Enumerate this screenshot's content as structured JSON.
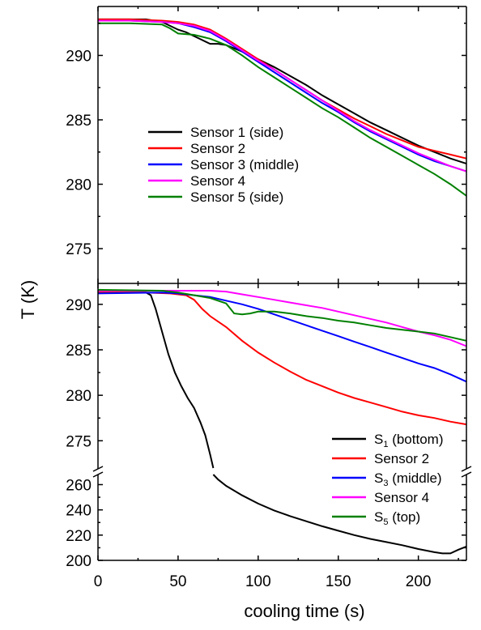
{
  "chart_data": [
    {
      "type": "line",
      "panel": "top",
      "xlabel": "",
      "ylabel": "",
      "xlim": [
        0,
        230
      ],
      "ylim": [
        272.3,
        293.8
      ],
      "yticks": [
        275,
        280,
        285,
        290
      ],
      "legend": {
        "placement": "center-left"
      },
      "series": [
        {
          "name": "Sensor 1 (side)",
          "color": "#000000",
          "points": [
            [
              0,
              292.8
            ],
            [
              10,
              292.8
            ],
            [
              20,
              292.8
            ],
            [
              30,
              292.8
            ],
            [
              35,
              292.7
            ],
            [
              40,
              292.6
            ],
            [
              45,
              292.3
            ],
            [
              50,
              292.0
            ],
            [
              55,
              291.8
            ],
            [
              60,
              291.5
            ],
            [
              65,
              291.2
            ],
            [
              70,
              290.9
            ],
            [
              75,
              290.9
            ],
            [
              80,
              290.8
            ],
            [
              90,
              290.3
            ],
            [
              100,
              289.7
            ],
            [
              110,
              289.1
            ],
            [
              120,
              288.4
            ],
            [
              130,
              287.7
            ],
            [
              140,
              286.9
            ],
            [
              150,
              286.2
            ],
            [
              160,
              285.5
            ],
            [
              170,
              284.8
            ],
            [
              180,
              284.2
            ],
            [
              190,
              283.6
            ],
            [
              200,
              283.0
            ],
            [
              210,
              282.5
            ],
            [
              220,
              282.0
            ],
            [
              230,
              281.6
            ]
          ]
        },
        {
          "name": "Sensor 2",
          "color": "#ff0000",
          "points": [
            [
              0,
              292.8
            ],
            [
              20,
              292.8
            ],
            [
              40,
              292.7
            ],
            [
              50,
              292.6
            ],
            [
              60,
              292.4
            ],
            [
              70,
              292.0
            ],
            [
              80,
              291.3
            ],
            [
              90,
              290.5
            ],
            [
              100,
              289.7
            ],
            [
              110,
              288.9
            ],
            [
              120,
              288.1
            ],
            [
              130,
              287.3
            ],
            [
              140,
              286.5
            ],
            [
              150,
              285.8
            ],
            [
              160,
              285.1
            ],
            [
              170,
              284.5
            ],
            [
              180,
              283.9
            ],
            [
              190,
              283.4
            ],
            [
              200,
              282.9
            ],
            [
              210,
              282.6
            ],
            [
              220,
              282.3
            ],
            [
              230,
              282.0
            ]
          ]
        },
        {
          "name": "Sensor 3 (middle)",
          "color": "#0000ff",
          "points": [
            [
              0,
              292.7
            ],
            [
              20,
              292.7
            ],
            [
              40,
              292.6
            ],
            [
              50,
              292.5
            ],
            [
              60,
              292.2
            ],
            [
              70,
              291.8
            ],
            [
              80,
              291.1
            ],
            [
              90,
              290.3
            ],
            [
              100,
              289.5
            ],
            [
              110,
              288.7
            ],
            [
              120,
              287.9
            ],
            [
              130,
              287.1
            ],
            [
              140,
              286.3
            ],
            [
              150,
              285.6
            ],
            [
              160,
              284.8
            ],
            [
              170,
              284.1
            ],
            [
              180,
              283.5
            ],
            [
              190,
              282.9
            ],
            [
              200,
              282.3
            ],
            [
              210,
              281.8
            ],
            [
              220,
              281.4
            ],
            [
              230,
              281.0
            ]
          ]
        },
        {
          "name": "Sensor 4",
          "color": "#ff00ff",
          "points": [
            [
              0,
              292.7
            ],
            [
              20,
              292.7
            ],
            [
              40,
              292.6
            ],
            [
              50,
              292.5
            ],
            [
              60,
              292.3
            ],
            [
              70,
              291.9
            ],
            [
              80,
              291.2
            ],
            [
              90,
              290.4
            ],
            [
              100,
              289.6
            ],
            [
              110,
              288.9
            ],
            [
              120,
              288.1
            ],
            [
              130,
              287.3
            ],
            [
              140,
              286.5
            ],
            [
              150,
              285.7
            ],
            [
              160,
              284.9
            ],
            [
              170,
              284.2
            ],
            [
              180,
              283.6
            ],
            [
              190,
              283.0
            ],
            [
              200,
              282.4
            ],
            [
              210,
              281.9
            ],
            [
              220,
              281.4
            ],
            [
              230,
              281.0
            ]
          ]
        },
        {
          "name": "Sensor 5 (side)",
          "color": "#008000",
          "points": [
            [
              0,
              292.5
            ],
            [
              20,
              292.5
            ],
            [
              40,
              292.4
            ],
            [
              45,
              292.1
            ],
            [
              50,
              291.7
            ],
            [
              60,
              291.6
            ],
            [
              70,
              291.3
            ],
            [
              80,
              290.8
            ],
            [
              90,
              290.0
            ],
            [
              100,
              289.1
            ],
            [
              110,
              288.3
            ],
            [
              120,
              287.5
            ],
            [
              130,
              286.7
            ],
            [
              140,
              285.9
            ],
            [
              150,
              285.2
            ],
            [
              160,
              284.4
            ],
            [
              170,
              283.6
            ],
            [
              180,
              282.9
            ],
            [
              190,
              282.2
            ],
            [
              200,
              281.5
            ],
            [
              210,
              280.8
            ],
            [
              220,
              280.0
            ],
            [
              230,
              279.1
            ]
          ]
        }
      ]
    },
    {
      "type": "line",
      "panel": "bottom",
      "xlabel": "cooling time (s)",
      "ylabel": "T (K)",
      "xlim": [
        0,
        230
      ],
      "ylim_upper": [
        272,
        292.3
      ],
      "ylim_lower": [
        200,
        268
      ],
      "yticks_upper": [
        275,
        280,
        285,
        290
      ],
      "yticks_lower": [
        200,
        220,
        240,
        260
      ],
      "xticks": [
        0,
        50,
        100,
        150,
        200
      ],
      "broken_axis": true,
      "legend": {
        "placement": "bottom-right"
      },
      "series": [
        {
          "name": "S1 (bottom)",
          "color": "#000000",
          "upper": [
            [
              0,
              291.3
            ],
            [
              20,
              291.3
            ],
            [
              30,
              291.3
            ],
            [
              33,
              291.0
            ],
            [
              36,
              289.5
            ],
            [
              40,
              287.0
            ],
            [
              44,
              284.5
            ],
            [
              48,
              282.5
            ],
            [
              52,
              281.0
            ],
            [
              56,
              279.7
            ],
            [
              60,
              278.6
            ],
            [
              64,
              277.0
            ],
            [
              67,
              275.6
            ],
            [
              70,
              273.5
            ],
            [
              72,
              272
            ]
          ],
          "lower": [
            [
              72,
              268
            ],
            [
              75,
              264
            ],
            [
              80,
              259
            ],
            [
              90,
              251.5
            ],
            [
              100,
              245
            ],
            [
              110,
              239.5
            ],
            [
              120,
              235
            ],
            [
              130,
              231
            ],
            [
              140,
              227
            ],
            [
              150,
              223.5
            ],
            [
              160,
              220
            ],
            [
              170,
              217
            ],
            [
              180,
              214.5
            ],
            [
              190,
              212
            ],
            [
              200,
              209
            ],
            [
              210,
              206.5
            ],
            [
              215,
              205.5
            ],
            [
              220,
              205.5
            ],
            [
              225,
              208.5
            ],
            [
              230,
              211
            ]
          ]
        },
        {
          "name": "Sensor 2",
          "color": "#ff0000",
          "upper": [
            [
              0,
              291.3
            ],
            [
              30,
              291.3
            ],
            [
              45,
              291.2
            ],
            [
              55,
              291.0
            ],
            [
              60,
              290.5
            ],
            [
              65,
              289.5
            ],
            [
              70,
              288.7
            ],
            [
              80,
              287.5
            ],
            [
              90,
              286.0
            ],
            [
              100,
              284.7
            ],
            [
              110,
              283.6
            ],
            [
              120,
              282.6
            ],
            [
              130,
              281.7
            ],
            [
              140,
              281.0
            ],
            [
              150,
              280.3
            ],
            [
              160,
              279.7
            ],
            [
              170,
              279.2
            ],
            [
              180,
              278.7
            ],
            [
              190,
              278.2
            ],
            [
              200,
              277.8
            ],
            [
              210,
              277.5
            ],
            [
              220,
              277.1
            ],
            [
              230,
              276.8
            ]
          ]
        },
        {
          "name": "S3 (middle)",
          "color": "#0000ff",
          "upper": [
            [
              0,
              291.2
            ],
            [
              40,
              291.3
            ],
            [
              50,
              291.2
            ],
            [
              60,
              291.0
            ],
            [
              70,
              290.8
            ],
            [
              80,
              290.4
            ],
            [
              90,
              290.0
            ],
            [
              100,
              289.5
            ],
            [
              110,
              288.9
            ],
            [
              120,
              288.3
            ],
            [
              130,
              287.7
            ],
            [
              140,
              287.1
            ],
            [
              150,
              286.5
            ],
            [
              160,
              285.9
            ],
            [
              170,
              285.3
            ],
            [
              180,
              284.7
            ],
            [
              190,
              284.1
            ],
            [
              200,
              283.5
            ],
            [
              210,
              283.0
            ],
            [
              220,
              282.3
            ],
            [
              230,
              281.5
            ]
          ]
        },
        {
          "name": "Sensor 4",
          "color": "#ff00ff",
          "upper": [
            [
              0,
              291.5
            ],
            [
              40,
              291.5
            ],
            [
              60,
              291.5
            ],
            [
              70,
              291.5
            ],
            [
              80,
              291.4
            ],
            [
              90,
              291.1
            ],
            [
              100,
              290.8
            ],
            [
              110,
              290.5
            ],
            [
              120,
              290.2
            ],
            [
              130,
              289.9
            ],
            [
              140,
              289.6
            ],
            [
              150,
              289.2
            ],
            [
              160,
              288.8
            ],
            [
              170,
              288.4
            ],
            [
              180,
              288.0
            ],
            [
              190,
              287.5
            ],
            [
              200,
              287.0
            ],
            [
              210,
              286.6
            ],
            [
              220,
              286.1
            ],
            [
              230,
              285.4
            ]
          ]
        },
        {
          "name": "S5 (top)",
          "color": "#008000",
          "upper": [
            [
              0,
              291.6
            ],
            [
              40,
              291.5
            ],
            [
              50,
              291.3
            ],
            [
              60,
              291.0
            ],
            [
              70,
              290.7
            ],
            [
              80,
              290.1
            ],
            [
              85,
              289.0
            ],
            [
              90,
              288.9
            ],
            [
              95,
              289.0
            ],
            [
              100,
              289.2
            ],
            [
              110,
              289.2
            ],
            [
              120,
              289.0
            ],
            [
              130,
              288.7
            ],
            [
              140,
              288.5
            ],
            [
              150,
              288.2
            ],
            [
              160,
              288.0
            ],
            [
              170,
              287.7
            ],
            [
              180,
              287.4
            ],
            [
              190,
              287.2
            ],
            [
              200,
              287.0
            ],
            [
              210,
              286.8
            ],
            [
              220,
              286.4
            ],
            [
              230,
              286.0
            ]
          ]
        }
      ]
    }
  ],
  "top_legend": [
    {
      "text": "Sensor 1 (side)",
      "color": "#000000"
    },
    {
      "text": "Sensor 2",
      "color": "#ff0000"
    },
    {
      "text": "Sensor 3 (middle)",
      "color": "#0000ff"
    },
    {
      "text": "Sensor 4",
      "color": "#ff00ff"
    },
    {
      "text": "Sensor 5 (side)",
      "color": "#008000"
    }
  ],
  "bottom_legend": [
    {
      "pre": "S",
      "sub": "1",
      "post": " (bottom)",
      "color": "#000000"
    },
    {
      "pre": "Sensor 2",
      "sub": "",
      "post": "",
      "color": "#ff0000"
    },
    {
      "pre": "S",
      "sub": "3",
      "post": " (middle)",
      "color": "#0000ff"
    },
    {
      "pre": "Sensor 4",
      "sub": "",
      "post": "",
      "color": "#ff00ff"
    },
    {
      "pre": "S",
      "sub": "5",
      "post": " (top)",
      "color": "#008000"
    }
  ]
}
